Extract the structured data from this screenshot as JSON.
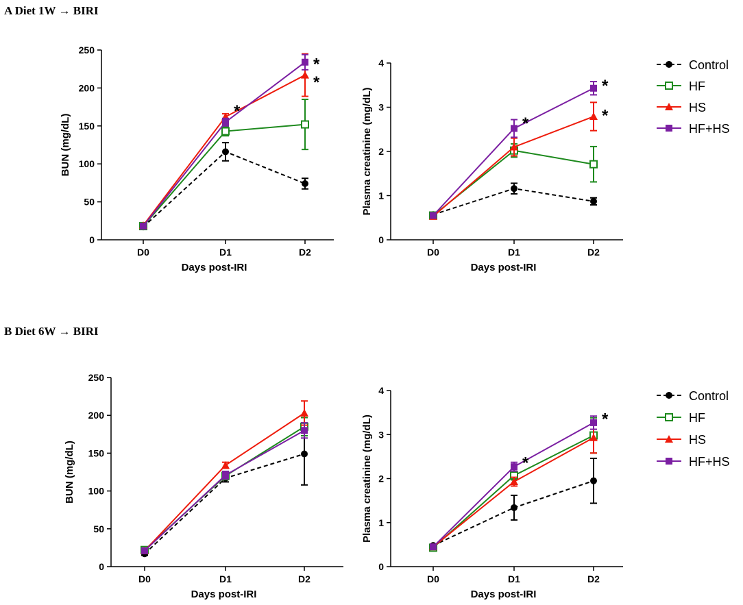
{
  "panels": [
    {
      "label": "A Diet 1W",
      "arrow": "→",
      "suffix": "BIRI"
    },
    {
      "label": "B Diet 6W",
      "arrow": "→",
      "suffix": "BIRI"
    }
  ],
  "legend": [
    {
      "name": "Control",
      "color": "#000000",
      "marker": "circle",
      "dashed": true
    },
    {
      "name": "HF",
      "color": "#1e8a1e",
      "marker": "open-square",
      "dashed": false
    },
    {
      "name": "HS",
      "color": "#ee1c0c",
      "marker": "triangle",
      "dashed": false
    },
    {
      "name": "HF+HS",
      "color": "#7b1fa2",
      "marker": "square",
      "dashed": false
    }
  ],
  "chart_data": [
    {
      "id": "a-bun",
      "type": "line",
      "categories": [
        "D0",
        "D1",
        "D2"
      ],
      "xlabel": "Days post-IRI",
      "ylabel": "BUN (mg/dL)",
      "ylim": [
        0,
        250
      ],
      "yticks": [
        0,
        50,
        100,
        150,
        200,
        250
      ],
      "series": [
        {
          "name": "Control",
          "values": [
            17,
            116,
            74
          ],
          "errors": [
            2,
            12,
            7
          ]
        },
        {
          "name": "HF",
          "values": [
            18,
            143,
            152
          ],
          "errors": [
            2,
            6,
            33
          ]
        },
        {
          "name": "HS",
          "values": [
            19,
            162,
            217
          ],
          "errors": [
            2,
            4,
            28
          ]
        },
        {
          "name": "HF+HS",
          "values": [
            18,
            155,
            234
          ],
          "errors": [
            2,
            5,
            10
          ]
        }
      ],
      "annotations": [
        {
          "category": "D1",
          "value": 175,
          "text": "*"
        },
        {
          "category": "D2",
          "value": 237,
          "text": "*"
        },
        {
          "category": "D2",
          "value": 213,
          "text": "*"
        }
      ]
    },
    {
      "id": "a-cr",
      "type": "line",
      "categories": [
        "D0",
        "D1",
        "D2"
      ],
      "xlabel": "Days post-IRI",
      "ylabel": "Plasma creatinine (mg/dL)",
      "ylim": [
        0,
        4
      ],
      "yticks": [
        0,
        1,
        2,
        3,
        4
      ],
      "series": [
        {
          "name": "Control",
          "values": [
            0.57,
            1.16,
            0.87
          ],
          "errors": [
            0.03,
            0.12,
            0.08
          ]
        },
        {
          "name": "HF",
          "values": [
            0.55,
            2.02,
            1.71
          ],
          "errors": [
            0.03,
            0.15,
            0.4
          ]
        },
        {
          "name": "HS",
          "values": [
            0.53,
            2.1,
            2.79
          ],
          "errors": [
            0.03,
            0.2,
            0.32
          ]
        },
        {
          "name": "HF+HS",
          "values": [
            0.55,
            2.52,
            3.43
          ],
          "errors": [
            0.03,
            0.2,
            0.15
          ]
        }
      ],
      "annotations": [
        {
          "category": "D1",
          "value": 2.73,
          "text": "*"
        },
        {
          "category": "D2",
          "value": 3.58,
          "text": "*"
        },
        {
          "category": "D2",
          "value": 2.91,
          "text": "*"
        }
      ]
    },
    {
      "id": "b-bun",
      "type": "line",
      "categories": [
        "D0",
        "D1",
        "D2"
      ],
      "xlabel": "Days post-IRI",
      "ylabel": "BUN (mg/dL)",
      "ylim": [
        0,
        250
      ],
      "yticks": [
        0,
        50,
        100,
        150,
        200,
        250
      ],
      "series": [
        {
          "name": "Control",
          "values": [
            17,
            117,
            149
          ],
          "errors": [
            2,
            5,
            41
          ]
        },
        {
          "name": "HF",
          "values": [
            22,
            120,
            185
          ],
          "errors": [
            2,
            5,
            12
          ]
        },
        {
          "name": "HS",
          "values": [
            21,
            134,
            203
          ],
          "errors": [
            2,
            4,
            16
          ]
        },
        {
          "name": "HF+HS",
          "values": [
            21,
            121,
            180
          ],
          "errors": [
            2,
            5,
            10
          ]
        }
      ],
      "annotations": []
    },
    {
      "id": "b-cr",
      "type": "line",
      "categories": [
        "D0",
        "D1",
        "D2"
      ],
      "xlabel": "Days post-IRI",
      "ylabel": "Plasma creatinine (mg/dL)",
      "ylim": [
        0,
        4
      ],
      "yticks": [
        0,
        1,
        2,
        3,
        4
      ],
      "series": [
        {
          "name": "Control",
          "values": [
            0.48,
            1.34,
            1.95
          ],
          "errors": [
            0.03,
            0.28,
            0.51
          ]
        },
        {
          "name": "HF",
          "values": [
            0.43,
            2.07,
            2.98
          ],
          "errors": [
            0.03,
            0.1,
            0.4
          ]
        },
        {
          "name": "HS",
          "values": [
            0.45,
            1.93,
            2.93
          ],
          "errors": [
            0.03,
            0.1,
            0.35
          ]
        },
        {
          "name": "HF+HS",
          "values": [
            0.45,
            2.27,
            3.27
          ],
          "errors": [
            0.03,
            0.1,
            0.15
          ]
        }
      ],
      "annotations": [
        {
          "category": "D1",
          "value": 2.45,
          "text": "*"
        },
        {
          "category": "D2",
          "value": 3.45,
          "text": "*"
        }
      ]
    }
  ]
}
